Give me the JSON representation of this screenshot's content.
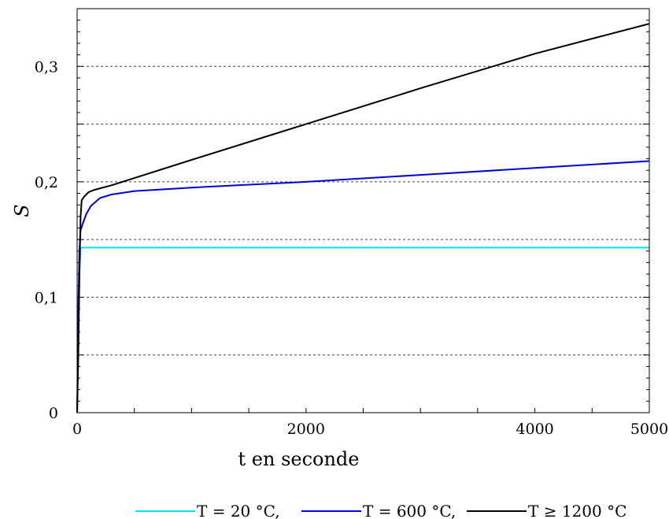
{
  "chart_data": {
    "type": "line",
    "xlabel": "t en seconde",
    "ylabel": "S",
    "xlim": [
      0,
      5000
    ],
    "ylim": [
      0,
      0.35
    ],
    "x_ticks_labeled": [
      {
        "value": 0,
        "label": "0"
      },
      {
        "value": 2000,
        "label": "2000"
      },
      {
        "value": 4000,
        "label": "4000"
      },
      {
        "value": 5000,
        "label": "5000"
      }
    ],
    "x_ticks_minor": [
      500,
      1000,
      1500,
      2500,
      3000,
      3500,
      4500
    ],
    "y_ticks_labeled": [
      {
        "value": 0,
        "label": "0"
      },
      {
        "value": 0.1,
        "label": "0,1"
      },
      {
        "value": 0.2,
        "label": "0,2"
      },
      {
        "value": 0.3,
        "label": "0,3"
      }
    ],
    "y_gridlines": [
      0.05,
      0.1,
      0.15,
      0.2,
      0.25,
      0.3,
      0.35
    ],
    "grid": "horizontal dashed",
    "legend_position": "bottom",
    "series": [
      {
        "name": "T = 20 °C,",
        "color": "#00e5ee",
        "x": [
          0,
          10,
          20,
          30,
          40,
          5000
        ],
        "y": [
          0,
          0.07,
          0.12,
          0.142,
          0.143,
          0.143
        ]
      },
      {
        "name": "T = 600 °C,",
        "color": "#0000d8",
        "x": [
          0,
          10,
          20,
          30,
          50,
          80,
          120,
          200,
          300,
          500,
          1000,
          2000,
          3000,
          4000,
          5000
        ],
        "y": [
          0,
          0.09,
          0.14,
          0.158,
          0.164,
          0.172,
          0.179,
          0.186,
          0.189,
          0.192,
          0.195,
          0.2,
          0.206,
          0.212,
          0.218
        ]
      },
      {
        "name": "T ≥ 1200 °C",
        "color": "#000000",
        "x": [
          0,
          10,
          20,
          30,
          40,
          60,
          80,
          100,
          150,
          300,
          1000,
          2000,
          3000,
          4000,
          5000
        ],
        "y": [
          0,
          0.05,
          0.12,
          0.17,
          0.184,
          0.187,
          0.189,
          0.191,
          0.193,
          0.197,
          0.219,
          0.25,
          0.281,
          0.311,
          0.337
        ]
      }
    ]
  }
}
